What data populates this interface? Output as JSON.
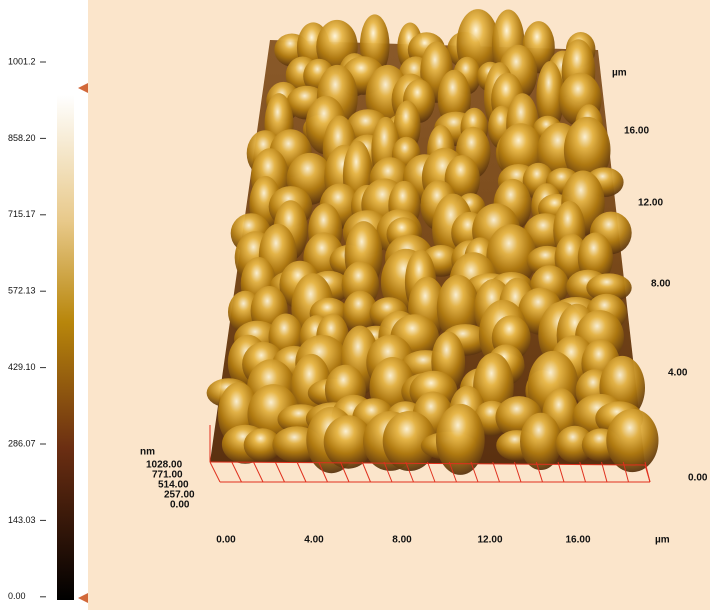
{
  "colorbar": {
    "ticks": [
      "1001.2",
      "858.20",
      "715.17",
      "572.13",
      "429.10",
      "286.07",
      "143.03",
      "0.00"
    ]
  },
  "z_axis": {
    "unit": "nm",
    "labels": [
      "1028.00",
      "771.00",
      "514.00",
      "257.00",
      "0.00"
    ]
  },
  "x_axis": {
    "labels": [
      "0.00",
      "4.00",
      "8.00",
      "12.00",
      "16.00"
    ],
    "unit": "µm"
  },
  "y_axis": {
    "unit": "µm",
    "labels": [
      "16.00",
      "12.00",
      "8.00",
      "4.00",
      "0.00"
    ]
  }
}
